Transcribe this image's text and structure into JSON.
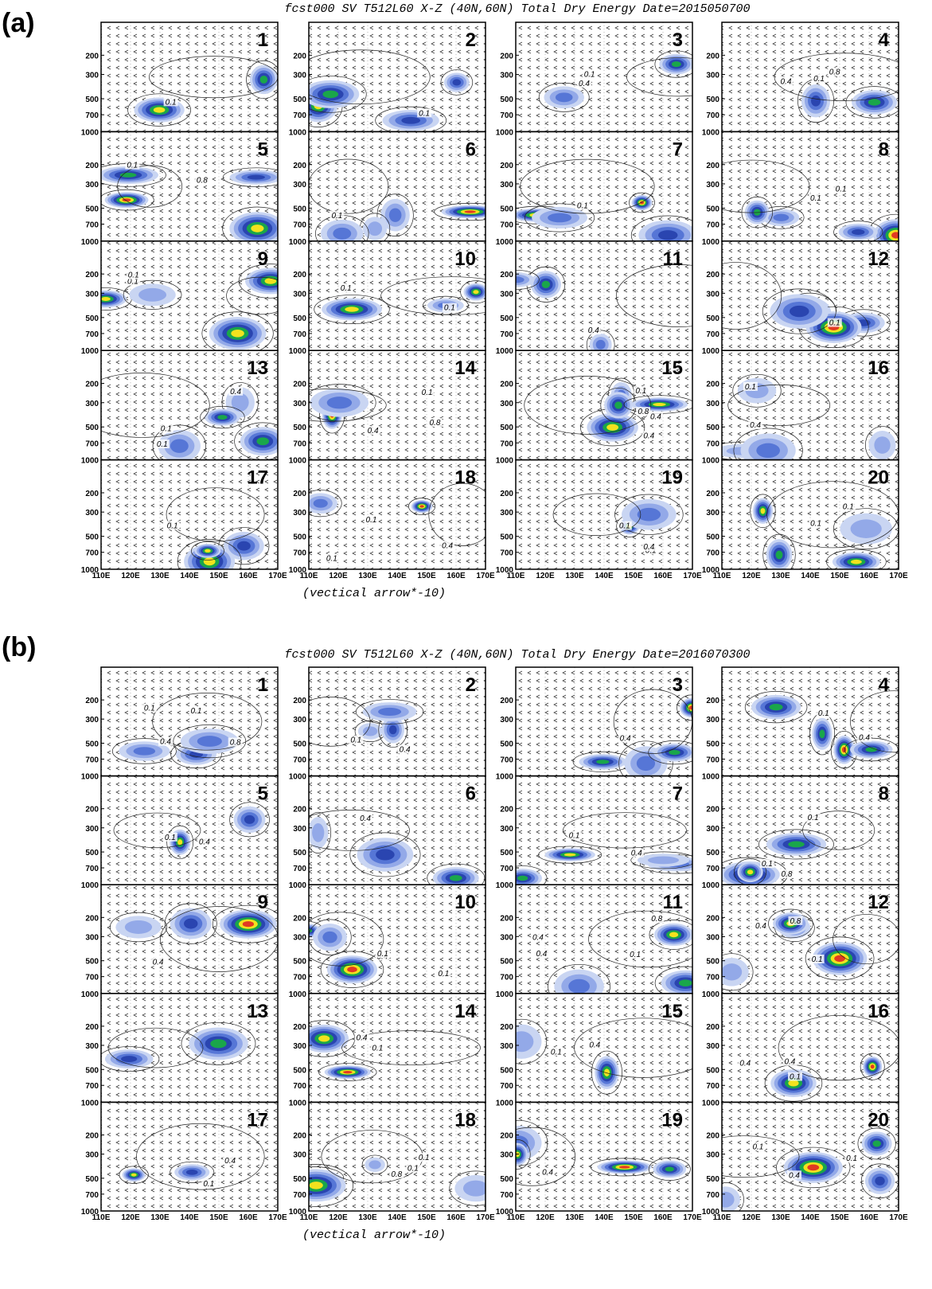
{
  "panels": [
    {
      "label": "(a)",
      "title": "fcst000 SV T512L60 X-Z (40N,60N) Total Dry Energy Date=2015050700",
      "y_labels": [
        "200",
        "300",
        "500",
        "700",
        "1000"
      ],
      "x_labels": [
        "110E",
        "120E",
        "130E",
        "140E",
        "150E",
        "160E",
        "170E"
      ],
      "footer": "(vectical arrow*-10)",
      "subplots": [
        {
          "number": "1",
          "contour_labels": [
            "0.1"
          ]
        },
        {
          "number": "2",
          "contour_labels": [
            "0.1"
          ]
        },
        {
          "number": "3",
          "contour_labels": [
            "0.1",
            "0.4"
          ]
        },
        {
          "number": "4",
          "contour_labels": [
            "0.8",
            "0.1",
            "0.4"
          ]
        },
        {
          "number": "5",
          "contour_labels": [
            "0.1",
            "0.8"
          ]
        },
        {
          "number": "6",
          "contour_labels": [
            "0.1"
          ]
        },
        {
          "number": "7",
          "contour_labels": [
            "0.1"
          ]
        },
        {
          "number": "8",
          "contour_labels": [
            "0.1",
            "0.1"
          ]
        },
        {
          "number": "9",
          "contour_labels": [
            "0.1",
            "0.1"
          ]
        },
        {
          "number": "10",
          "contour_labels": [
            "0.1",
            "0.1"
          ]
        },
        {
          "number": "11",
          "contour_labels": [
            "0.4"
          ]
        },
        {
          "number": "12",
          "contour_labels": [
            "0.1"
          ]
        },
        {
          "number": "13",
          "contour_labels": [
            "0.1",
            "0.4",
            "0.1"
          ]
        },
        {
          "number": "14",
          "contour_labels": [
            "0.8",
            "0.1",
            "0.4"
          ]
        },
        {
          "number": "15",
          "contour_labels": [
            "0.1",
            "0.4",
            "0.8",
            "0.4"
          ]
        },
        {
          "number": "16",
          "contour_labels": [
            "0.1",
            "0.4"
          ]
        },
        {
          "number": "17",
          "contour_labels": [
            "0.1"
          ]
        },
        {
          "number": "18",
          "contour_labels": [
            "0.1",
            "0.4",
            "0.1"
          ]
        },
        {
          "number": "19",
          "contour_labels": [
            "0.1",
            "0.1",
            "0.4"
          ]
        },
        {
          "number": "20",
          "contour_labels": [
            "0.1",
            "0.1"
          ]
        }
      ]
    },
    {
      "label": "(b)",
      "title": "fcst000 SV T512L60 X-Z (40N,60N) Total Dry Energy Date=2016070300",
      "y_labels": [
        "200",
        "300",
        "500",
        "700",
        "1000"
      ],
      "x_labels": [
        "110E",
        "120E",
        "130E",
        "140E",
        "150E",
        "160E",
        "170E"
      ],
      "footer": "(vectical arrow*-10)",
      "subplots": [
        {
          "number": "1",
          "contour_labels": [
            "0.1",
            "0.1",
            "0.4",
            "0.8"
          ]
        },
        {
          "number": "2",
          "contour_labels": [
            "0.1",
            "0.4"
          ]
        },
        {
          "number": "3",
          "contour_labels": [
            "0.4"
          ]
        },
        {
          "number": "4",
          "contour_labels": [
            "0.4",
            "0.1"
          ]
        },
        {
          "number": "5",
          "contour_labels": [
            "0.1",
            "0.4"
          ]
        },
        {
          "number": "6",
          "contour_labels": [
            "0.4"
          ]
        },
        {
          "number": "7",
          "contour_labels": [
            "0.1",
            "0.4"
          ]
        },
        {
          "number": "8",
          "contour_labels": [
            "0.1",
            "0.8",
            "0.1"
          ]
        },
        {
          "number": "9",
          "contour_labels": [
            "0.4"
          ]
        },
        {
          "number": "10",
          "contour_labels": [
            "0.4",
            "0.1",
            "0.1"
          ]
        },
        {
          "number": "11",
          "contour_labels": [
            "0.4",
            "0.1",
            "0.4",
            "0.8"
          ]
        },
        {
          "number": "12",
          "contour_labels": [
            "0.1",
            "0.4",
            "0.8"
          ]
        },
        {
          "number": "13",
          "contour_labels": []
        },
        {
          "number": "14",
          "contour_labels": [
            "0.4",
            "0.1"
          ]
        },
        {
          "number": "15",
          "contour_labels": [
            "0.1",
            "0.4"
          ]
        },
        {
          "number": "16",
          "contour_labels": [
            "0.1",
            "0.4",
            "0.4"
          ]
        },
        {
          "number": "17",
          "contour_labels": [
            "0.1",
            "0.4"
          ]
        },
        {
          "number": "18",
          "contour_labels": [
            "0.8",
            "0.1",
            "0.1"
          ]
        },
        {
          "number": "19",
          "contour_labels": [
            "0.4"
          ]
        },
        {
          "number": "20",
          "contour_labels": [
            "0.4",
            "0.1",
            "0.1"
          ]
        }
      ]
    }
  ]
}
